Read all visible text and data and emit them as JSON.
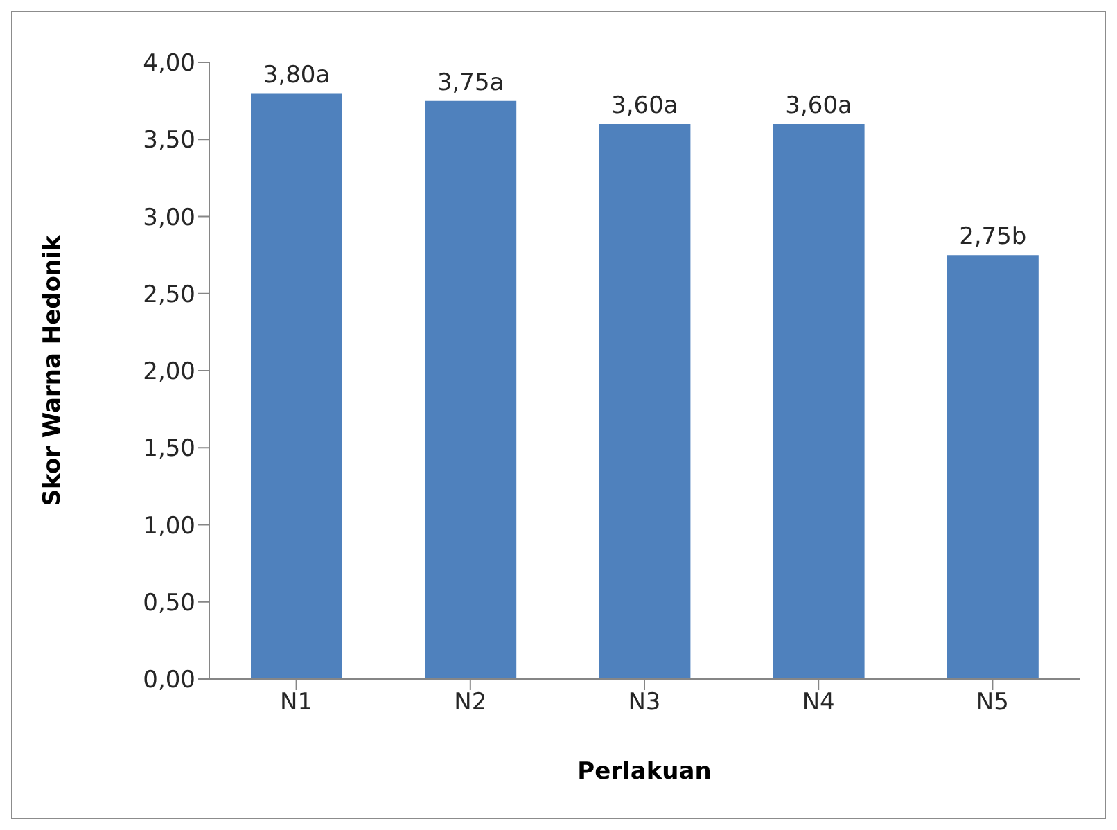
{
  "chart_data": {
    "type": "bar",
    "xlabel": "Perlakuan",
    "ylabel": "Skor Warna Hedonik",
    "categories": [
      "N1",
      "N2",
      "N3",
      "N4",
      "N5"
    ],
    "values": [
      3.8,
      3.75,
      3.6,
      3.6,
      2.75
    ],
    "value_labels": [
      "3,80a",
      "3,75a",
      "3,60a",
      "3,60a",
      "2,75b"
    ],
    "color": "#4f81bd",
    "ylim": [
      0,
      4
    ],
    "yticks": [
      {
        "value": 0,
        "label": "0,00"
      },
      {
        "value": 0.5,
        "label": "0,50"
      },
      {
        "value": 1,
        "label": "1,00"
      },
      {
        "value": 1.5,
        "label": "1,50"
      },
      {
        "value": 2,
        "label": "2,00"
      },
      {
        "value": 2.5,
        "label": "2,50"
      },
      {
        "value": 3,
        "label": "3,00"
      },
      {
        "value": 3.5,
        "label": "3,50"
      },
      {
        "value": 4,
        "label": "4,00"
      }
    ],
    "grid": false,
    "legend": false
  }
}
